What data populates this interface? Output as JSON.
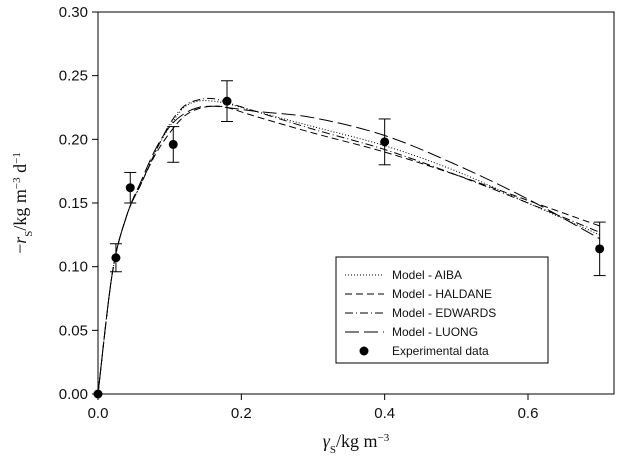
{
  "chart_data": {
    "type": "line",
    "x_axis": {
      "range": [
        0.0,
        0.72
      ],
      "ticks": [
        0.0,
        0.2,
        0.4,
        0.6
      ],
      "tick_labels": [
        "0.0",
        "0.2",
        "0.4",
        "0.6"
      ],
      "label_italic": "γ",
      "label_sub": "S",
      "label_rest": "/kg m",
      "label_sup": "−3"
    },
    "y_axis": {
      "range": [
        0.0,
        0.3
      ],
      "ticks": [
        0.0,
        0.05,
        0.1,
        0.15,
        0.2,
        0.25,
        0.3
      ],
      "tick_labels": [
        "0.00",
        "0.05",
        "0.10",
        "0.15",
        "0.20",
        "0.25",
        "0.30"
      ],
      "label_prefix": "−",
      "label_italic": "r",
      "label_sub": "S",
      "label_rest1": "/kg m",
      "label_sup1": "−3",
      "label_rest2": " d",
      "label_sup2": "−1"
    },
    "grid": false,
    "legend_position": "bottom-right",
    "series": [
      {
        "name": "Model - AIBA",
        "style": "dotted",
        "x": [
          0,
          0.02,
          0.04,
          0.06,
          0.08,
          0.1,
          0.12,
          0.14,
          0.16,
          0.18,
          0.22,
          0.3,
          0.4,
          0.5,
          0.6,
          0.7
        ],
        "y": [
          0,
          0.095,
          0.14,
          0.165,
          0.19,
          0.21,
          0.225,
          0.23,
          0.23,
          0.228,
          0.222,
          0.21,
          0.195,
          0.175,
          0.15,
          0.125
        ]
      },
      {
        "name": "Model - HALDANE",
        "style": "dashed",
        "x": [
          0,
          0.02,
          0.04,
          0.06,
          0.08,
          0.1,
          0.12,
          0.14,
          0.16,
          0.18,
          0.22,
          0.3,
          0.4,
          0.5,
          0.6,
          0.7
        ],
        "y": [
          0,
          0.095,
          0.14,
          0.165,
          0.188,
          0.205,
          0.218,
          0.224,
          0.226,
          0.225,
          0.218,
          0.205,
          0.19,
          0.172,
          0.152,
          0.132
        ]
      },
      {
        "name": "Model - EDWARDS",
        "style": "dashdot",
        "x": [
          0,
          0.02,
          0.04,
          0.06,
          0.08,
          0.1,
          0.12,
          0.14,
          0.16,
          0.18,
          0.22,
          0.3,
          0.4,
          0.5,
          0.6,
          0.7
        ],
        "y": [
          0,
          0.095,
          0.14,
          0.165,
          0.19,
          0.212,
          0.226,
          0.231,
          0.232,
          0.229,
          0.222,
          0.208,
          0.192,
          0.172,
          0.15,
          0.127
        ]
      },
      {
        "name": "Model - LUONG",
        "style": "longdash",
        "x": [
          0,
          0.02,
          0.04,
          0.06,
          0.08,
          0.1,
          0.12,
          0.14,
          0.16,
          0.18,
          0.22,
          0.3,
          0.4,
          0.5,
          0.6,
          0.7
        ],
        "y": [
          0,
          0.095,
          0.14,
          0.167,
          0.192,
          0.21,
          0.22,
          0.225,
          0.226,
          0.225,
          0.222,
          0.217,
          0.203,
          0.18,
          0.153,
          0.122
        ]
      }
    ],
    "experimental": {
      "name": "Experimental data",
      "x": [
        0.0,
        0.025,
        0.045,
        0.105,
        0.18,
        0.4,
        0.7
      ],
      "y": [
        0.0,
        0.107,
        0.162,
        0.196,
        0.23,
        0.198,
        0.114
      ],
      "err": [
        0,
        0.011,
        0.012,
        0.014,
        0.016,
        0.018,
        0.021
      ]
    }
  }
}
